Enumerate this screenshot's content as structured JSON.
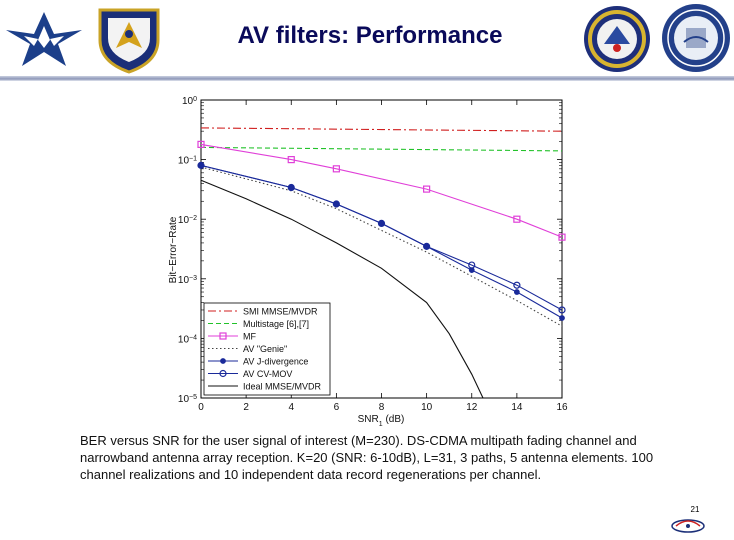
{
  "slide": {
    "title": "AV filters: Performance",
    "caption": "BER versus SNR for the user signal of interest (M=230). DS-CDMA multipath fading channel and narrowband antenna array reception. K=20 (SNR: 6-10dB), L=31, 3 paths, 5 antenna elements. 100 channel realizations and 10 independent data record regenerations per channel.",
    "page_number": "21"
  },
  "logos": {
    "left": [
      "air-force-logo",
      "afrl-shield-logo"
    ],
    "right": [
      "scientific-research-seal",
      "university-buffalo-seal"
    ],
    "footer": "cite-logo"
  },
  "chart_data": {
    "type": "line",
    "title": "",
    "xlabel": "SNR",
    "xlabel_subscript": "1",
    "xlabel_unit": " (dB)",
    "ylabel": "Bit−Error−Rate",
    "yscale": "log",
    "xlim": [
      0,
      16
    ],
    "ylim": [
      1e-05,
      1
    ],
    "x_ticks": [
      0,
      2,
      4,
      6,
      8,
      10,
      12,
      14,
      16
    ],
    "y_ticks": [
      {
        "value": 1,
        "mantissa": "10",
        "exp": "0"
      },
      {
        "value": 0.1,
        "mantissa": "10",
        "exp": "−1"
      },
      {
        "value": 0.01,
        "mantissa": "10",
        "exp": "−2"
      },
      {
        "value": 0.001,
        "mantissa": "10",
        "exp": "−3"
      },
      {
        "value": 0.0001,
        "mantissa": "10",
        "exp": "−4"
      },
      {
        "value": 1e-05,
        "mantissa": "10",
        "exp": "−5"
      }
    ],
    "grid": false,
    "legend_position": "bottom-left",
    "series": [
      {
        "name": "SMI MMSE/MVDR",
        "color": "#d01f1f",
        "dash": "8 3 2 3",
        "marker": "none",
        "x": [
          0,
          16
        ],
        "y": [
          0.34,
          0.3
        ]
      },
      {
        "name": "Multistage [6],[7]",
        "color": "#22c22a",
        "dash": "5 3",
        "marker": "none",
        "x": [
          0,
          16
        ],
        "y": [
          0.16,
          0.14
        ]
      },
      {
        "name": "MF",
        "color": "#e03fd8",
        "dash": "",
        "marker": "square",
        "x": [
          0,
          4,
          6,
          10,
          14,
          16
        ],
        "y": [
          0.18,
          0.1,
          0.07,
          0.032,
          0.01,
          0.005
        ]
      },
      {
        "name": "AV \"Genie\"",
        "color": "#444444",
        "dash": "1.5 2.5",
        "marker": "none",
        "x": [
          0,
          4,
          6,
          8,
          10,
          12,
          14,
          16
        ],
        "y": [
          0.075,
          0.03,
          0.015,
          0.0065,
          0.0028,
          0.0011,
          0.00043,
          0.00016
        ]
      },
      {
        "name": "AV J-divergence",
        "color": "#1a2a9a",
        "dash": "",
        "marker": "dot",
        "x": [
          0,
          4,
          6,
          8,
          10,
          12,
          14,
          16
        ],
        "y": [
          0.08,
          0.034,
          0.018,
          0.0085,
          0.0035,
          0.0014,
          0.0006,
          0.00022
        ]
      },
      {
        "name": "AV CV-MOV",
        "color": "#1a2a9a",
        "dash": "",
        "marker": "circle",
        "x": [
          0,
          4,
          6,
          8,
          10,
          12,
          14,
          16
        ],
        "y": [
          0.08,
          0.034,
          0.018,
          0.0085,
          0.0035,
          0.0017,
          0.00078,
          0.0003
        ]
      },
      {
        "name": "Ideal MMSE/MVDR",
        "color": "#111111",
        "dash": "",
        "marker": "none",
        "x": [
          0,
          2,
          4,
          6,
          8,
          10,
          11,
          12,
          12.5
        ],
        "y": [
          0.045,
          0.022,
          0.01,
          0.004,
          0.0015,
          0.0004,
          0.00012,
          2.5e-05,
          1e-05
        ]
      }
    ]
  }
}
